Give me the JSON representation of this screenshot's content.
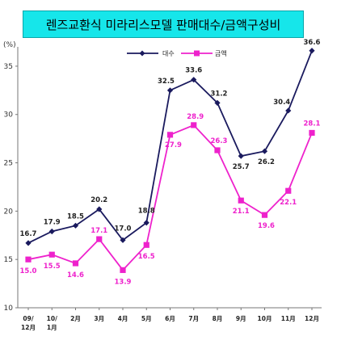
{
  "title": "렌즈교환식 미라리스모델 판매대수/금액구성비",
  "unit_label": "(%)",
  "colors": {
    "series1": "#1a1a5e",
    "series2": "#ee22cc",
    "title_bg": "#16e6ea"
  },
  "chart_data": {
    "type": "line",
    "title": "렌즈교환식 미라리스모델 판매대수/금액구성비",
    "xlabel": "",
    "ylabel": "(%)",
    "ylim": [
      10,
      37
    ],
    "yticks": [
      10,
      15,
      20,
      25,
      30,
      35
    ],
    "grid": false,
    "legend": "top-center",
    "categories": [
      [
        "09/",
        "12月"
      ],
      [
        "10/",
        "1月"
      ],
      [
        "2月"
      ],
      [
        "3月"
      ],
      [
        "4月"
      ],
      [
        "5月"
      ],
      [
        "6月"
      ],
      [
        "7月"
      ],
      [
        "8月"
      ],
      [
        "9月"
      ],
      [
        "10月"
      ],
      [
        "11月"
      ],
      [
        "12月"
      ]
    ],
    "series": [
      {
        "name": "대수",
        "color": "#1a1a5e",
        "values": [
          16.7,
          17.9,
          18.5,
          20.2,
          17.0,
          18.8,
          32.5,
          33.6,
          31.2,
          25.7,
          26.2,
          30.4,
          36.6
        ],
        "labels": [
          "16.7",
          "17.9",
          "18.5",
          "20.2",
          "17.0",
          "18.8",
          "32.5",
          "33.6",
          "31.2",
          "25.7",
          "26.2",
          "30.4",
          "36.6"
        ]
      },
      {
        "name": "금액",
        "color": "#ee22cc",
        "values": [
          15.0,
          15.5,
          14.6,
          17.1,
          13.9,
          16.5,
          27.9,
          28.9,
          26.3,
          21.1,
          19.6,
          22.1,
          28.1
        ],
        "labels": [
          "15.0",
          "15.5",
          "14.6",
          "17.1",
          "13.9",
          "16.5",
          "27.9",
          "28.9",
          "26.3",
          "21.1",
          "19.6",
          "22.1",
          "28.1"
        ]
      }
    ]
  }
}
